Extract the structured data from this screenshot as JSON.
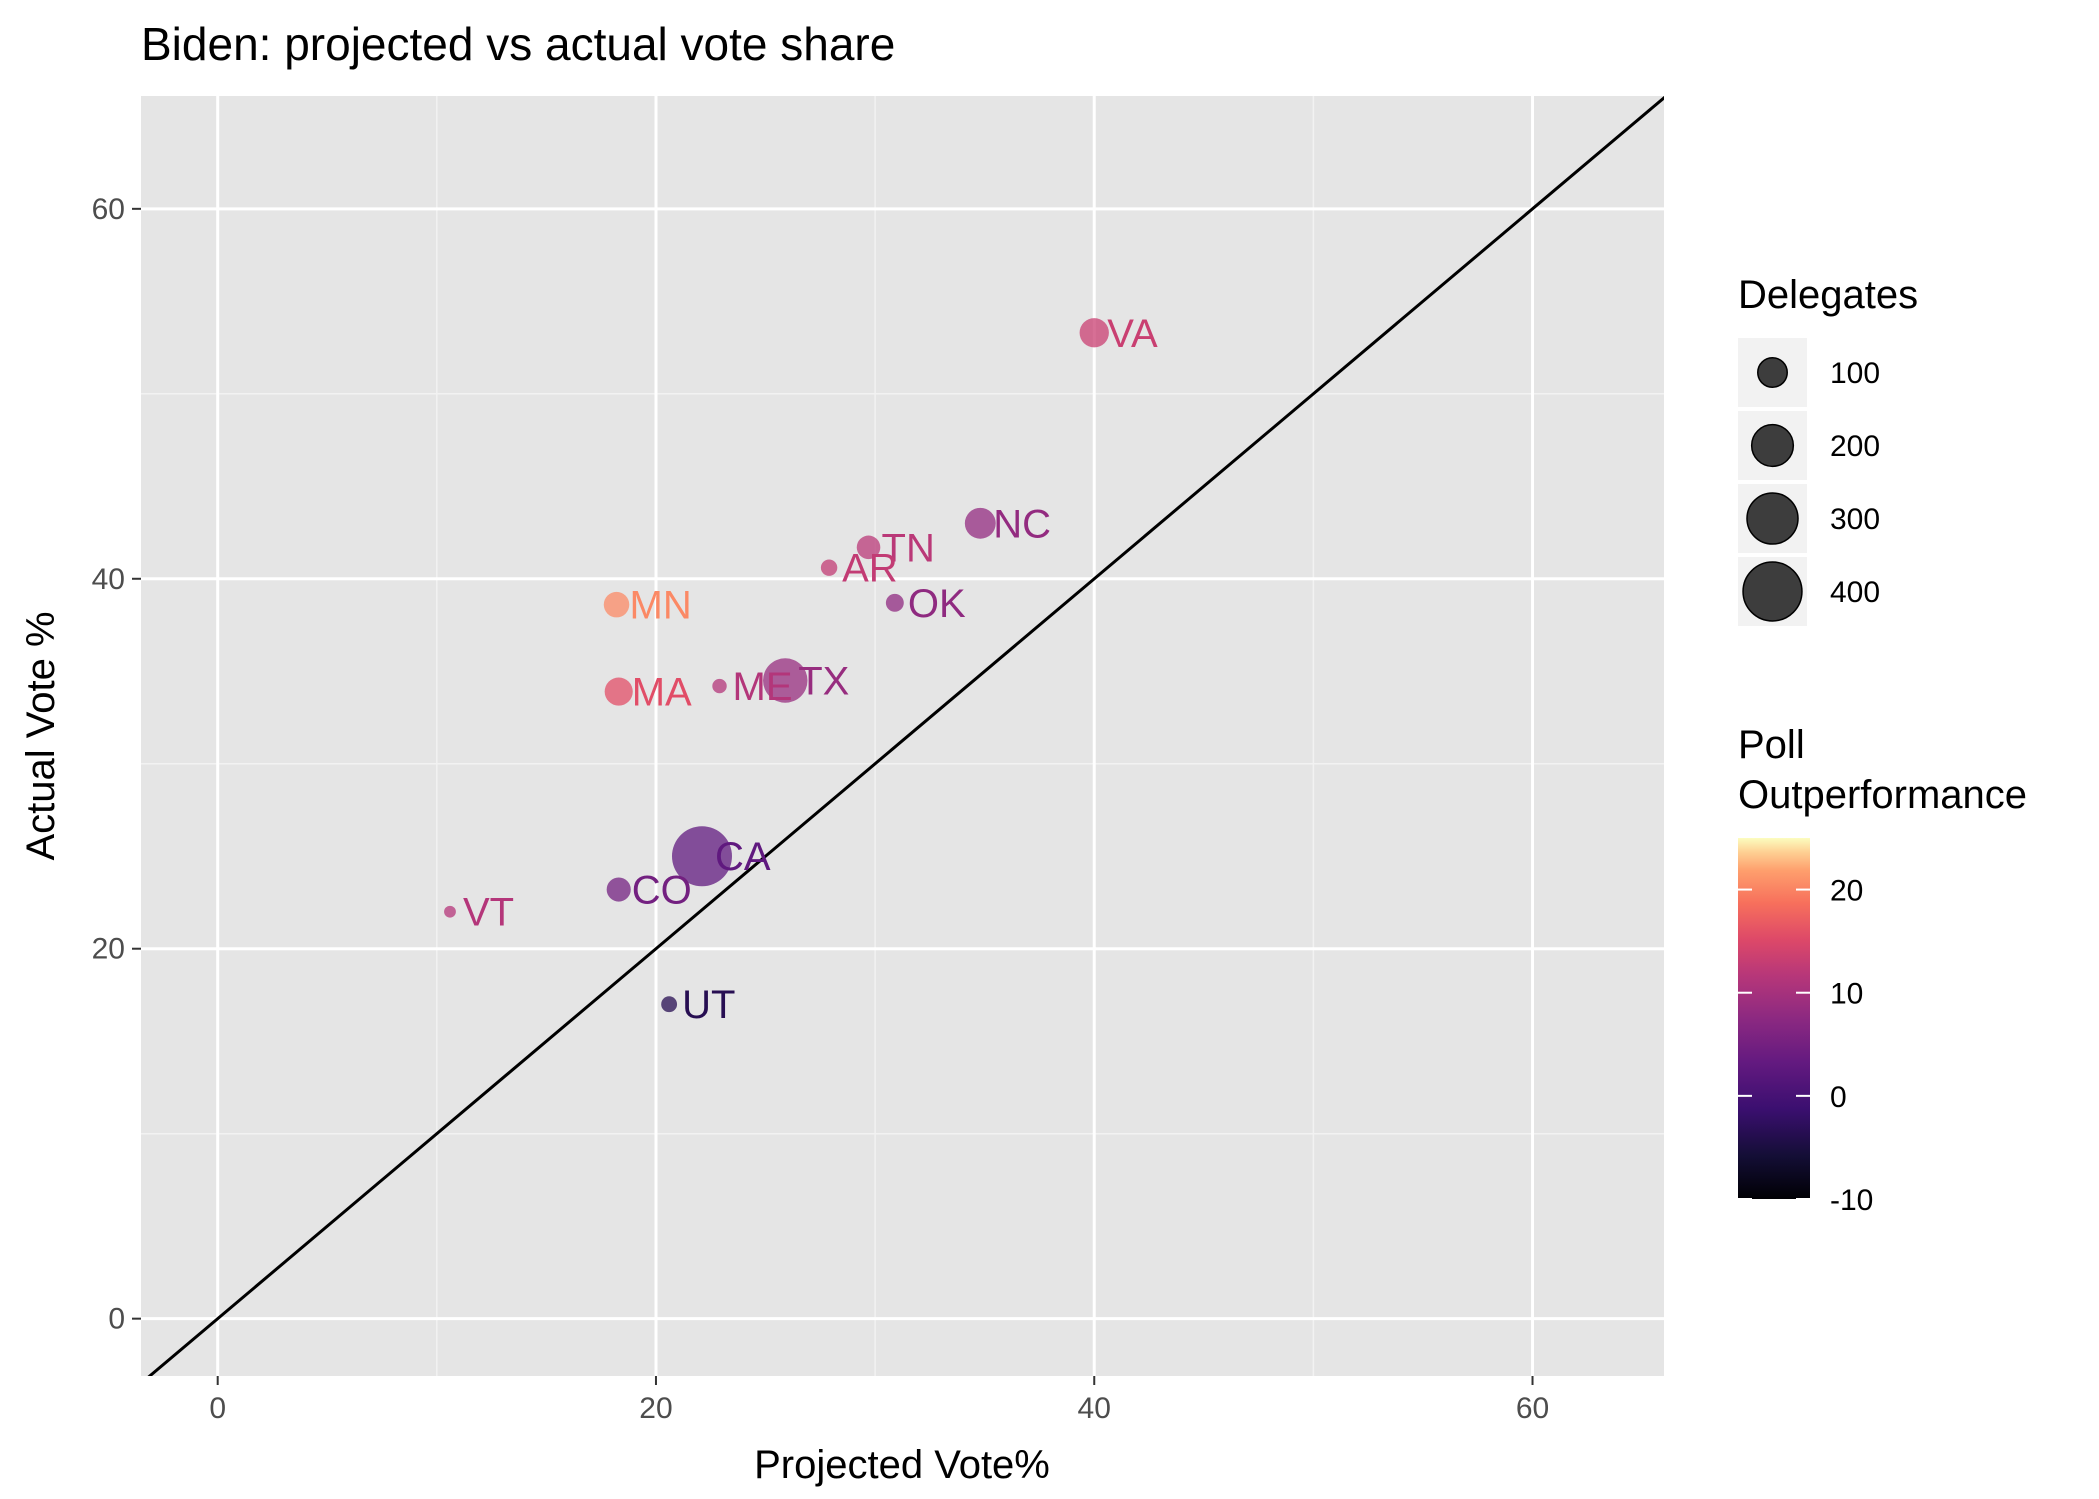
{
  "chart_data": {
    "type": "scatter",
    "title": "Biden: projected vs actual vote share",
    "xlabel": "Projected Vote%",
    "ylabel": "Actual Vote %",
    "xlim": [
      -3.5,
      66
    ],
    "ylim": [
      -3.1,
      66.1
    ],
    "x_ticks": [
      0,
      20,
      40,
      60
    ],
    "y_ticks": [
      0,
      20,
      40,
      60
    ],
    "grid": true,
    "reference_line": "y = x",
    "size_legend": {
      "title": "Delegates",
      "values": [
        100,
        200,
        300,
        400
      ],
      "labels": [
        "100",
        "200",
        "300",
        "400"
      ]
    },
    "color_legend": {
      "title_lines": [
        "Poll",
        "Outperformance"
      ],
      "range": [
        -10,
        25
      ],
      "ticks": [
        -10,
        0,
        10,
        20
      ],
      "tick_labels": [
        "-10",
        "0",
        "10",
        "20"
      ],
      "palette": "magma"
    },
    "legend_position": "right",
    "points": [
      {
        "label": "VA",
        "x": 40.0,
        "y": 53.3,
        "delegates": 99,
        "outperformance": 13.3
      },
      {
        "label": "NC",
        "x": 34.8,
        "y": 43.0,
        "delegates": 110,
        "outperformance": 8.2
      },
      {
        "label": "TN",
        "x": 29.7,
        "y": 41.7,
        "delegates": 64,
        "outperformance": 12.0
      },
      {
        "label": "AR",
        "x": 27.9,
        "y": 40.6,
        "delegates": 31,
        "outperformance": 12.7
      },
      {
        "label": "OK",
        "x": 30.9,
        "y": 38.7,
        "delegates": 37,
        "outperformance": 7.8
      },
      {
        "label": "MN",
        "x": 18.2,
        "y": 38.6,
        "delegates": 75,
        "outperformance": 20.4
      },
      {
        "label": "MA",
        "x": 18.3,
        "y": 33.9,
        "delegates": 91,
        "outperformance": 15.6
      },
      {
        "label": "ME",
        "x": 22.9,
        "y": 34.2,
        "delegates": 24,
        "outperformance": 11.3
      },
      {
        "label": "TX",
        "x": 25.9,
        "y": 34.5,
        "delegates": 228,
        "outperformance": 8.6
      },
      {
        "label": "CA",
        "x": 22.1,
        "y": 25.0,
        "delegates": 415,
        "outperformance": 2.9
      },
      {
        "label": "CO",
        "x": 18.3,
        "y": 23.2,
        "delegates": 67,
        "outperformance": 4.9
      },
      {
        "label": "VT",
        "x": 10.6,
        "y": 22.0,
        "delegates": 16,
        "outperformance": 11.4
      },
      {
        "label": "UT",
        "x": 20.6,
        "y": 17.0,
        "delegates": 29,
        "outperformance": -3.6
      }
    ]
  }
}
